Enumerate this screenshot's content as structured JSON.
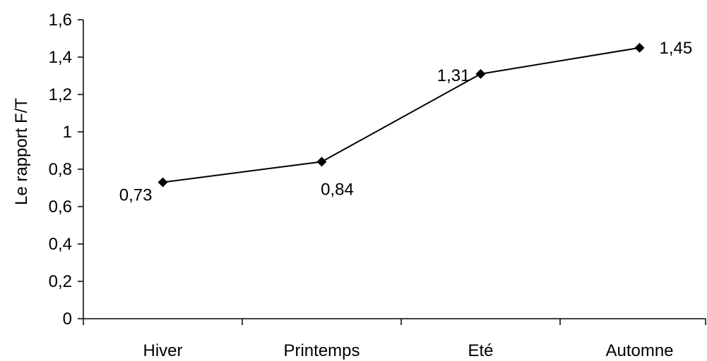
{
  "chart_data": {
    "type": "line",
    "title": "",
    "xlabel": "",
    "ylabel": "Le rapport F/T",
    "ylim": [
      0,
      1.6
    ],
    "yticks": [
      "0",
      "0,2",
      "0,4",
      "0,6",
      "0,8",
      "1",
      "1,2",
      "1,4",
      "1,6"
    ],
    "categories": [
      "Hiver",
      "Printemps",
      "Eté",
      "Automne"
    ],
    "series": [
      {
        "values": [
          0.73,
          0.84,
          1.31,
          1.45
        ],
        "labels": [
          "0,73",
          "0,84",
          "1,31",
          "1,45"
        ],
        "color": "#000000",
        "marker": "diamond"
      }
    ],
    "grid": false,
    "legend": "none"
  }
}
